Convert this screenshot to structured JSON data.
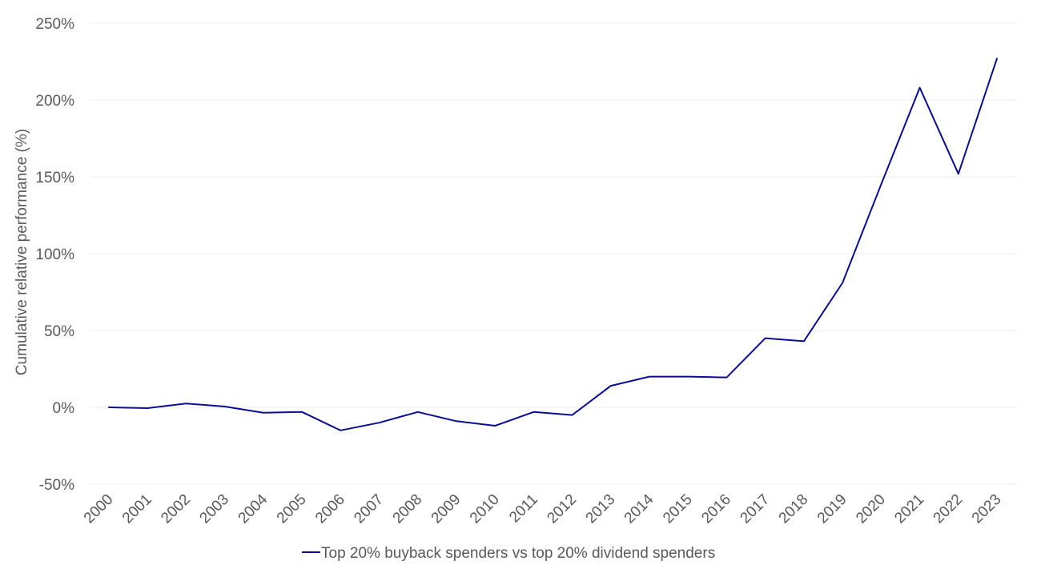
{
  "chart_data": {
    "type": "line",
    "title": "",
    "ylabel": "Cumulative relative performance (%)",
    "xlabel": "",
    "x": [
      "2000",
      "2001",
      "2002",
      "2003",
      "2004",
      "2005",
      "2006",
      "2007",
      "2008",
      "2009",
      "2010",
      "2011",
      "2012",
      "2013",
      "2014",
      "2015",
      "2016",
      "2017",
      "2018",
      "2019",
      "2020",
      "2021",
      "2022",
      "2023"
    ],
    "series": [
      {
        "name": "Top 20% buyback spenders vs top 20% dividend spenders",
        "color": "#0b0b94",
        "values": [
          0,
          -0.5,
          2.5,
          0.5,
          -3.5,
          -3,
          -15,
          -10,
          -3,
          -9,
          -12,
          -3,
          -5,
          14,
          20,
          20,
          19.5,
          45,
          43,
          81,
          145,
          208,
          152,
          227
        ]
      }
    ],
    "ylim": [
      -50,
      250
    ],
    "yticks": [
      -50,
      0,
      50,
      100,
      150,
      200,
      250
    ],
    "ytick_labels": [
      "-50%",
      "0%",
      "50%",
      "100%",
      "150%",
      "200%",
      "250%"
    ],
    "grid": true,
    "legend_position": "bottom-center"
  }
}
